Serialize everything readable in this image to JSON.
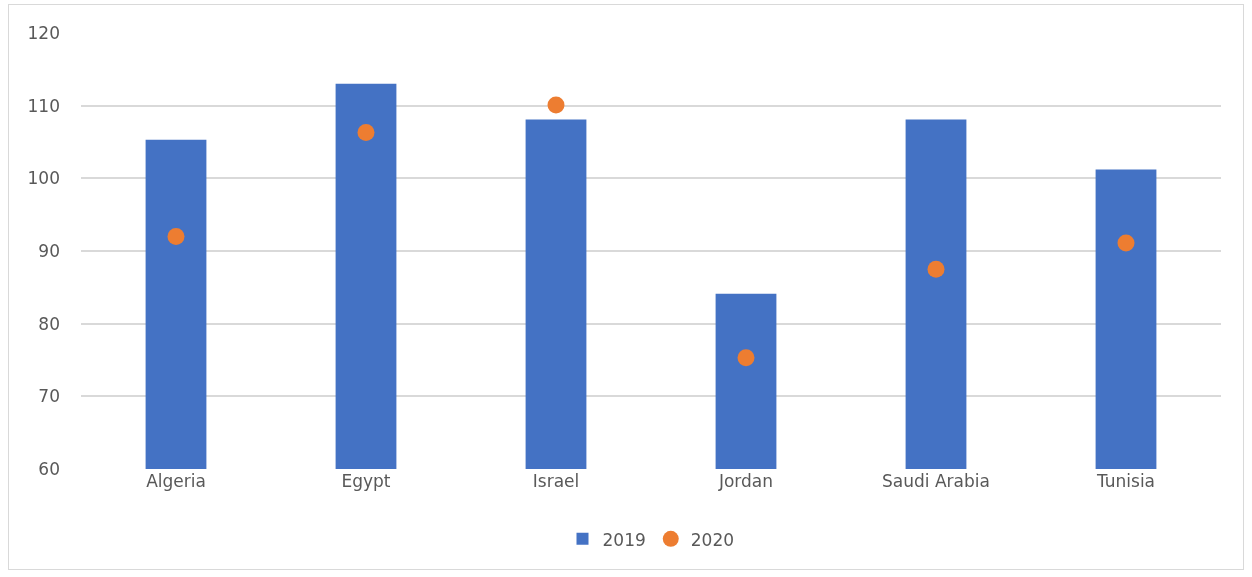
{
  "chart_data": {
    "type": "bar",
    "categories": [
      "Algeria",
      "Egypt",
      "Israel",
      "Jordan",
      "Saudi Arabia",
      "Tunisia"
    ],
    "series": [
      {
        "name": "2019",
        "color": "#4472c4",
        "values": [
          105.3,
          113,
          108.1,
          84.1,
          108.1,
          101.2
        ]
      },
      {
        "name": "2020",
        "type": "scatter",
        "color": "#ed7d31",
        "values": [
          92,
          106.3,
          110.1,
          75.3,
          87.5,
          91.1
        ]
      }
    ],
    "ylim": [
      60,
      120
    ],
    "yticks": [
      60,
      70,
      80,
      90,
      100,
      110,
      120
    ],
    "grid": "y",
    "legend": "bottom",
    "marker": "circle"
  }
}
